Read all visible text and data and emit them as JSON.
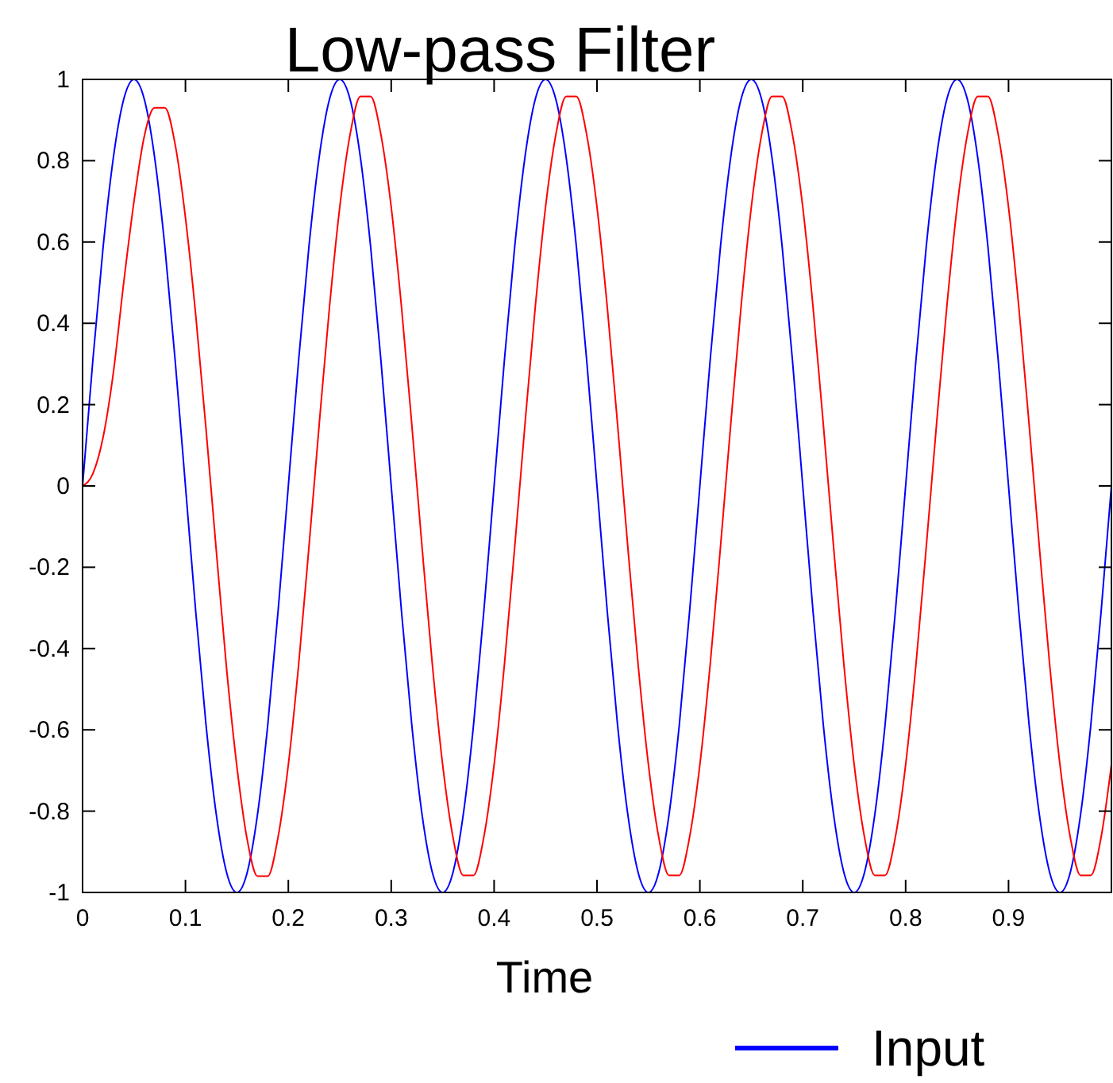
{
  "chart_data": {
    "type": "line",
    "title": "Low-pass Filter",
    "xlabel": "Time",
    "x": [
      0,
      0.01,
      0.02,
      0.03,
      0.04,
      0.05,
      0.06,
      0.07,
      0.08,
      0.09,
      0.1,
      0.11,
      0.12,
      0.13,
      0.14,
      0.15,
      0.16,
      0.17,
      0.18,
      0.19,
      0.2,
      0.21,
      0.22,
      0.23,
      0.24,
      0.25,
      0.26,
      0.27,
      0.28,
      0.29,
      0.3,
      0.31,
      0.32,
      0.33,
      0.34,
      0.35,
      0.36,
      0.37,
      0.38,
      0.39,
      0.4,
      0.41,
      0.42,
      0.43,
      0.44,
      0.45,
      0.46,
      0.47,
      0.48,
      0.49,
      0.5,
      0.51,
      0.52,
      0.53,
      0.54,
      0.55,
      0.56,
      0.57,
      0.58,
      0.59,
      0.6,
      0.61,
      0.62,
      0.63,
      0.64,
      0.65,
      0.66,
      0.67,
      0.68,
      0.69,
      0.7,
      0.71,
      0.72,
      0.73,
      0.74,
      0.75,
      0.76,
      0.77,
      0.78,
      0.79,
      0.8,
      0.81,
      0.82,
      0.83,
      0.84,
      0.85,
      0.86,
      0.87,
      0.88,
      0.89,
      0.9,
      0.91,
      0.92,
      0.93,
      0.94,
      0.95,
      0.96,
      0.97,
      0.98,
      0.99,
      1
    ],
    "series": [
      {
        "name": "Input",
        "color": "#0000ff",
        "values": [
          0,
          0.309,
          0.588,
          0.809,
          0.951,
          1,
          0.951,
          0.809,
          0.588,
          0.309,
          0,
          -0.309,
          -0.588,
          -0.809,
          -0.951,
          -1,
          -0.951,
          -0.809,
          -0.588,
          -0.309,
          0,
          0.309,
          0.588,
          0.809,
          0.951,
          1,
          0.951,
          0.809,
          0.588,
          0.309,
          0,
          -0.309,
          -0.588,
          -0.809,
          -0.951,
          -1,
          -0.951,
          -0.809,
          -0.588,
          -0.309,
          0,
          0.309,
          0.588,
          0.809,
          0.951,
          1,
          0.951,
          0.809,
          0.588,
          0.309,
          0,
          -0.309,
          -0.588,
          -0.809,
          -0.951,
          -1,
          -0.951,
          -0.809,
          -0.588,
          -0.309,
          0,
          0.309,
          0.588,
          0.809,
          0.951,
          1,
          0.951,
          0.809,
          0.588,
          0.309,
          0,
          -0.309,
          -0.588,
          -0.809,
          -0.951,
          -1,
          -0.951,
          -0.809,
          -0.588,
          -0.309,
          0,
          0.309,
          0.588,
          0.809,
          0.951,
          1,
          0.951,
          0.809,
          0.588,
          0.309,
          0,
          -0.309,
          -0.588,
          -0.809,
          -0.951,
          -1,
          -0.951,
          -0.809,
          -0.588,
          -0.309,
          0
        ]
      },
      {
        "color": "#ff0000",
        "values": [
          0,
          0.03,
          0.12,
          0.28,
          0.5,
          0.7,
          0.86,
          0.93,
          0.93,
          0.84,
          0.66,
          0.42,
          0.14,
          -0.16,
          -0.45,
          -0.69,
          -0.87,
          -0.96,
          -0.96,
          -0.864,
          -0.686,
          -0.44,
          -0.151,
          0.151,
          0.44,
          0.686,
          0.864,
          0.958,
          0.958,
          0.864,
          0.686,
          0.44,
          0.151,
          -0.151,
          -0.44,
          -0.686,
          -0.864,
          -0.958,
          -0.958,
          -0.864,
          -0.686,
          -0.44,
          -0.151,
          0.151,
          0.44,
          0.686,
          0.864,
          0.958,
          0.958,
          0.864,
          0.686,
          0.44,
          0.151,
          -0.151,
          -0.44,
          -0.686,
          -0.864,
          -0.958,
          -0.958,
          -0.864,
          -0.686,
          -0.44,
          -0.151,
          0.151,
          0.44,
          0.686,
          0.864,
          0.958,
          0.958,
          0.864,
          0.686,
          0.44,
          0.151,
          -0.151,
          -0.44,
          -0.686,
          -0.864,
          -0.958,
          -0.958,
          -0.864,
          -0.686,
          -0.44,
          -0.151,
          0.151,
          0.44,
          0.686,
          0.864,
          0.958,
          0.958,
          0.864,
          0.686,
          0.44,
          0.151,
          -0.151,
          -0.44,
          -0.686,
          -0.864,
          -0.958,
          -0.958,
          -0.864,
          -0.686
        ]
      }
    ],
    "xlim": [
      0,
      1
    ],
    "xticks": [
      0,
      0.1,
      0.2,
      0.3,
      0.4,
      0.5,
      0.6,
      0.7,
      0.8,
      0.9
    ],
    "ylim": [
      -1,
      1
    ],
    "yticks": [
      -1,
      -0.8,
      -0.6,
      -0.4,
      -0.2,
      0,
      0.2,
      0.4,
      0.6,
      0.8,
      1
    ],
    "legend": "bottom right",
    "grid": false
  }
}
